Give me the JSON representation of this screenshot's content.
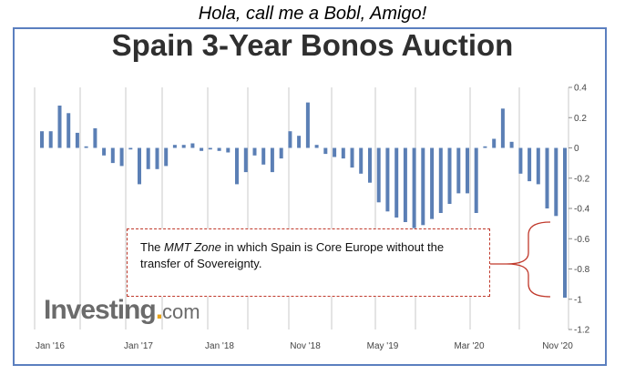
{
  "caption": "Hola, call me a Bobl, Amigo!",
  "annotation": {
    "part1": "The ",
    "italic": "MMT Zone",
    "part2": " in which Spain is Core Europe without the transfer of Sovereignty."
  },
  "watermark": {
    "name": "Investing",
    "dot": ".",
    "suffix": "com"
  },
  "colors": {
    "bar": "#5b7fb5",
    "frame": "#5b7fbf",
    "annotation_border": "#c0392b",
    "grid": "#c8c8c8",
    "brace": "#c0392b"
  },
  "chart_data": {
    "type": "bar",
    "title": "Spain 3-Year Bonos Auction",
    "ylim": [
      -1.2,
      0.4
    ],
    "yticks": [
      "0.4",
      "0.2",
      "0",
      "-0.2",
      "-0.4",
      "-0.6",
      "-0.8",
      "-1",
      "-1.2"
    ],
    "xtick_labels": [
      "Jan '16",
      "Jan '17",
      "Jan '18",
      "Nov '18",
      "May '19",
      "Mar '20",
      "Nov '20"
    ],
    "grid": "vertical",
    "y_axis_position": "right",
    "values": [
      0.11,
      0.11,
      0.28,
      0.23,
      0.1,
      0.01,
      0.13,
      -0.05,
      -0.1,
      -0.12,
      -0.01,
      -0.24,
      -0.14,
      -0.14,
      -0.12,
      0.02,
      0.02,
      0.03,
      -0.02,
      -0.01,
      -0.02,
      -0.03,
      -0.24,
      -0.16,
      -0.05,
      -0.11,
      -0.16,
      -0.07,
      0.11,
      0.08,
      0.3,
      0.02,
      -0.04,
      -0.06,
      -0.07,
      -0.13,
      -0.17,
      -0.23,
      -0.36,
      -0.42,
      -0.46,
      -0.49,
      -0.53,
      -0.51,
      -0.47,
      -0.43,
      -0.37,
      -0.3,
      -0.3,
      -0.43,
      0.01,
      0.06,
      0.26,
      0.04,
      -0.17,
      -0.22,
      -0.24,
      -0.4,
      -0.45,
      -0.99
    ]
  }
}
